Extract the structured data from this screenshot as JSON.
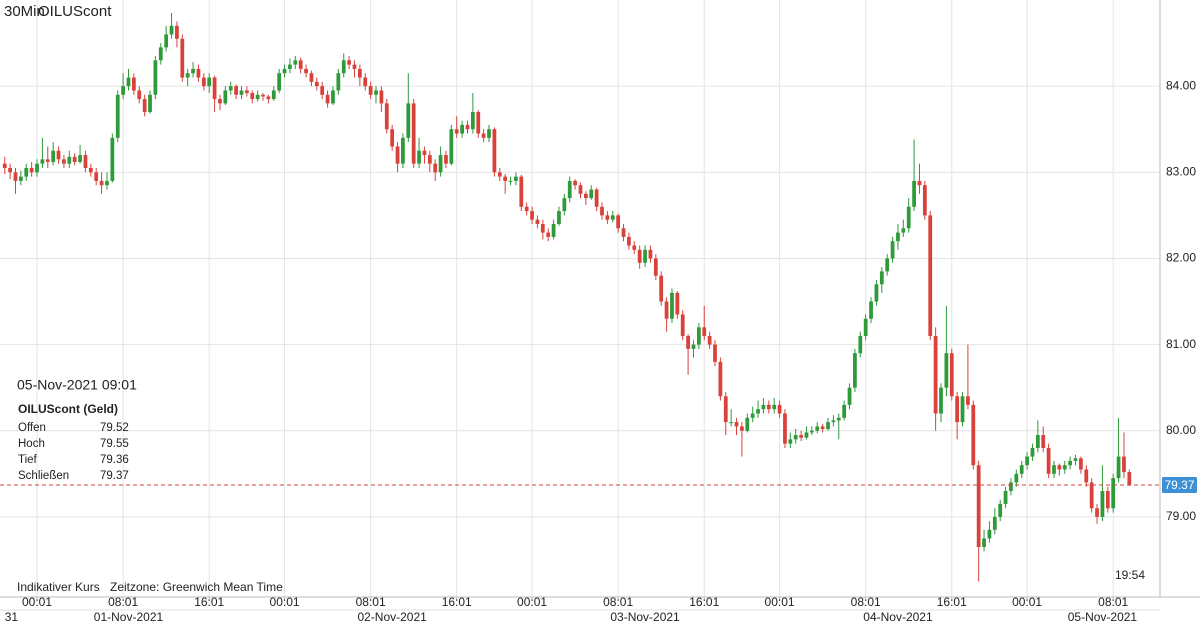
{
  "chart_data": {
    "type": "candlestick",
    "title": "30Min",
    "instrument": "OILUScont",
    "up_color": "#2e9a3a",
    "down_color": "#d9413b",
    "price_line_color": "#d9413b",
    "price_tag_color": "#3d8fd6",
    "grid": true,
    "xlim": [
      -0.88,
      214.7
    ],
    "ylim": [
      78.07,
      85.0
    ],
    "yticks": [
      {
        "value": 79,
        "label": "79.00"
      },
      {
        "value": 80,
        "label": "80.00"
      },
      {
        "value": 81,
        "label": "81.00"
      },
      {
        "value": 82,
        "label": "82.00"
      },
      {
        "value": 83,
        "label": "83.00"
      },
      {
        "value": 84,
        "label": "84.00"
      }
    ],
    "xticks": [
      {
        "value": 6,
        "label": "00:01"
      },
      {
        "value": 22,
        "label": "08:01"
      },
      {
        "value": 38,
        "label": "16:01"
      },
      {
        "value": 52,
        "label": "00:01"
      },
      {
        "value": 68,
        "label": "08:01"
      },
      {
        "value": 84,
        "label": "16:01"
      },
      {
        "value": 98,
        "label": "00:01"
      },
      {
        "value": 114,
        "label": "08:01"
      },
      {
        "value": 130,
        "label": "16:01"
      },
      {
        "value": 144,
        "label": "00:01"
      },
      {
        "value": 160,
        "label": "08:01"
      },
      {
        "value": 176,
        "label": "16:01"
      },
      {
        "value": 190,
        "label": "00:01"
      },
      {
        "value": 206,
        "label": "08:01"
      }
    ],
    "date_labels": [
      {
        "value": 0,
        "label": "31"
      },
      {
        "value": 23,
        "label": "01-Nov-2021"
      },
      {
        "value": 72,
        "label": "02-Nov-2021"
      },
      {
        "value": 119,
        "label": "03-Nov-2021"
      },
      {
        "value": 166,
        "label": "04-Nov-2021"
      },
      {
        "value": 204,
        "label": "05-Nov-2021"
      }
    ],
    "candles": [
      [
        83.1,
        83.18,
        82.98,
        83.05
      ],
      [
        83.05,
        83.1,
        82.92,
        83.0
      ],
      [
        83.0,
        83.05,
        82.75,
        82.9
      ],
      [
        82.9,
        83.02,
        82.85,
        82.95
      ],
      [
        82.95,
        83.1,
        82.9,
        83.05
      ],
      [
        83.05,
        83.12,
        82.95,
        83.0
      ],
      [
        83.0,
        83.15,
        82.95,
        83.1
      ],
      [
        83.1,
        83.4,
        83.05,
        83.15
      ],
      [
        83.15,
        83.3,
        83.05,
        83.12
      ],
      [
        83.12,
        83.35,
        83.08,
        83.25
      ],
      [
        83.25,
        83.3,
        83.1,
        83.15
      ],
      [
        83.15,
        83.2,
        83.05,
        83.1
      ],
      [
        83.1,
        83.25,
        83.05,
        83.18
      ],
      [
        83.18,
        83.22,
        83.08,
        83.12
      ],
      [
        83.12,
        83.32,
        83.1,
        83.2
      ],
      [
        83.2,
        83.25,
        83.0,
        83.05
      ],
      [
        83.05,
        83.1,
        82.95,
        83.0
      ],
      [
        83.0,
        83.05,
        82.85,
        82.9
      ],
      [
        82.9,
        83.0,
        82.75,
        82.85
      ],
      [
        82.85,
        83.0,
        82.8,
        82.9
      ],
      [
        82.9,
        83.45,
        82.88,
        83.4
      ],
      [
        83.4,
        83.95,
        83.35,
        83.9
      ],
      [
        83.9,
        84.15,
        83.85,
        84.0
      ],
      [
        84.0,
        84.2,
        83.95,
        84.1
      ],
      [
        84.1,
        84.15,
        83.9,
        83.95
      ],
      [
        83.95,
        84.0,
        83.8,
        83.85
      ],
      [
        83.85,
        83.9,
        83.65,
        83.7
      ],
      [
        83.7,
        83.95,
        83.68,
        83.9
      ],
      [
        83.9,
        84.35,
        83.85,
        84.3
      ],
      [
        84.3,
        84.5,
        84.25,
        84.45
      ],
      [
        84.45,
        84.7,
        84.4,
        84.6
      ],
      [
        84.6,
        84.85,
        84.55,
        84.7
      ],
      [
        84.7,
        84.75,
        84.45,
        84.55
      ],
      [
        84.55,
        84.6,
        84.05,
        84.1
      ],
      [
        84.1,
        84.2,
        84.0,
        84.15
      ],
      [
        84.15,
        84.28,
        84.1,
        84.2
      ],
      [
        84.2,
        84.25,
        84.05,
        84.1
      ],
      [
        84.1,
        84.15,
        83.95,
        84.0
      ],
      [
        84.0,
        84.15,
        83.92,
        84.1
      ],
      [
        84.1,
        84.12,
        83.7,
        83.85
      ],
      [
        83.85,
        83.9,
        83.72,
        83.8
      ],
      [
        83.8,
        84.0,
        83.78,
        83.95
      ],
      [
        83.95,
        84.05,
        83.9,
        84.0
      ],
      [
        84.0,
        84.02,
        83.85,
        83.9
      ],
      [
        83.9,
        84.0,
        83.85,
        83.95
      ],
      [
        83.95,
        84.0,
        83.88,
        83.92
      ],
      [
        83.92,
        83.95,
        83.8,
        83.85
      ],
      [
        83.85,
        83.95,
        83.82,
        83.9
      ],
      [
        83.9,
        83.92,
        83.83,
        83.88
      ],
      [
        83.88,
        83.9,
        83.8,
        83.85
      ],
      [
        83.85,
        84.0,
        83.83,
        83.95
      ],
      [
        83.95,
        84.2,
        83.92,
        84.15
      ],
      [
        84.15,
        84.25,
        84.1,
        84.2
      ],
      [
        84.2,
        84.32,
        84.15,
        84.25
      ],
      [
        84.25,
        84.35,
        84.2,
        84.3
      ],
      [
        84.3,
        84.33,
        84.15,
        84.2
      ],
      [
        84.2,
        84.25,
        84.1,
        84.15
      ],
      [
        84.15,
        84.18,
        84.0,
        84.05
      ],
      [
        84.05,
        84.1,
        83.95,
        84.0
      ],
      [
        84.0,
        84.05,
        83.85,
        83.9
      ],
      [
        83.9,
        83.95,
        83.75,
        83.8
      ],
      [
        83.8,
        84.0,
        83.78,
        83.95
      ],
      [
        83.95,
        84.2,
        83.9,
        84.15
      ],
      [
        84.15,
        84.38,
        84.1,
        84.3
      ],
      [
        84.3,
        84.35,
        84.2,
        84.25
      ],
      [
        84.25,
        84.3,
        84.1,
        84.2
      ],
      [
        84.2,
        84.25,
        84.0,
        84.1
      ],
      [
        84.1,
        84.15,
        83.95,
        84.0
      ],
      [
        84.0,
        84.05,
        83.85,
        83.9
      ],
      [
        83.9,
        84.0,
        83.8,
        83.95
      ],
      [
        83.95,
        84.0,
        83.7,
        83.8
      ],
      [
        83.8,
        83.85,
        83.45,
        83.5
      ],
      [
        83.5,
        83.55,
        83.25,
        83.3
      ],
      [
        83.3,
        83.35,
        83.0,
        83.1
      ],
      [
        83.1,
        83.45,
        83.05,
        83.4
      ],
      [
        83.4,
        84.15,
        83.35,
        83.8
      ],
      [
        83.8,
        83.85,
        83.05,
        83.1
      ],
      [
        83.1,
        83.4,
        83.05,
        83.25
      ],
      [
        83.25,
        83.3,
        83.1,
        83.2
      ],
      [
        83.2,
        83.25,
        83.0,
        83.1
      ],
      [
        83.1,
        83.15,
        82.9,
        83.0
      ],
      [
        83.0,
        83.3,
        82.95,
        83.2
      ],
      [
        83.2,
        83.25,
        83.05,
        83.1
      ],
      [
        83.1,
        83.55,
        83.08,
        83.5
      ],
      [
        83.5,
        83.65,
        83.4,
        83.45
      ],
      [
        83.45,
        83.6,
        83.4,
        83.55
      ],
      [
        83.55,
        83.6,
        83.45,
        83.5
      ],
      [
        83.5,
        83.92,
        83.45,
        83.7
      ],
      [
        83.7,
        83.72,
        83.4,
        83.45
      ],
      [
        83.45,
        83.5,
        83.35,
        83.4
      ],
      [
        83.4,
        83.55,
        83.35,
        83.5
      ],
      [
        83.5,
        83.52,
        82.95,
        83.0
      ],
      [
        83.0,
        83.05,
        82.9,
        82.95
      ],
      [
        82.95,
        82.98,
        82.75,
        82.9
      ],
      [
        82.9,
        82.95,
        82.85,
        82.9
      ],
      [
        82.9,
        83.0,
        82.85,
        82.95
      ],
      [
        82.95,
        82.97,
        82.55,
        82.6
      ],
      [
        82.6,
        82.65,
        82.5,
        82.55
      ],
      [
        82.55,
        82.6,
        82.4,
        82.45
      ],
      [
        82.45,
        82.5,
        82.35,
        82.4
      ],
      [
        82.4,
        82.45,
        82.22,
        82.3
      ],
      [
        82.3,
        82.35,
        82.2,
        82.25
      ],
      [
        82.25,
        82.45,
        82.22,
        82.4
      ],
      [
        82.4,
        82.6,
        82.38,
        82.55
      ],
      [
        82.55,
        82.75,
        82.5,
        82.7
      ],
      [
        82.7,
        82.95,
        82.65,
        82.9
      ],
      [
        82.9,
        82.92,
        82.8,
        82.85
      ],
      [
        82.85,
        82.88,
        82.7,
        82.75
      ],
      [
        82.75,
        82.78,
        82.62,
        82.7
      ],
      [
        82.7,
        82.85,
        82.68,
        82.8
      ],
      [
        82.8,
        82.82,
        82.55,
        82.6
      ],
      [
        82.6,
        82.65,
        82.45,
        82.5
      ],
      [
        82.5,
        82.55,
        82.4,
        82.45
      ],
      [
        82.45,
        82.55,
        82.42,
        82.5
      ],
      [
        82.5,
        82.52,
        82.3,
        82.35
      ],
      [
        82.35,
        82.4,
        82.2,
        82.25
      ],
      [
        82.25,
        82.3,
        82.1,
        82.15
      ],
      [
        82.15,
        82.2,
        82.05,
        82.1
      ],
      [
        82.1,
        82.15,
        81.88,
        81.95
      ],
      [
        81.95,
        82.15,
        81.9,
        82.1
      ],
      [
        82.1,
        82.15,
        81.95,
        82.0
      ],
      [
        82.0,
        82.05,
        81.75,
        81.8
      ],
      [
        81.8,
        81.85,
        81.45,
        81.5
      ],
      [
        81.5,
        81.55,
        81.15,
        81.3
      ],
      [
        81.3,
        81.65,
        81.25,
        81.6
      ],
      [
        81.6,
        81.62,
        81.3,
        81.35
      ],
      [
        81.35,
        81.4,
        81.05,
        81.1
      ],
      [
        81.1,
        81.12,
        80.65,
        80.95
      ],
      [
        80.95,
        81.05,
        80.85,
        81.0
      ],
      [
        81.0,
        81.25,
        80.95,
        81.2
      ],
      [
        81.2,
        81.45,
        81.05,
        81.1
      ],
      [
        81.1,
        81.15,
        80.95,
        81.0
      ],
      [
        81.0,
        81.05,
        80.75,
        80.8
      ],
      [
        80.8,
        80.85,
        80.35,
        80.4
      ],
      [
        80.4,
        80.45,
        79.95,
        80.1
      ],
      [
        80.1,
        80.25,
        80.05,
        80.1
      ],
      [
        80.1,
        80.15,
        79.95,
        80.05
      ],
      [
        80.05,
        80.1,
        79.7,
        80.0
      ],
      [
        80.0,
        80.2,
        79.98,
        80.15
      ],
      [
        80.15,
        80.28,
        80.1,
        80.2
      ],
      [
        80.2,
        80.35,
        80.15,
        80.25
      ],
      [
        80.25,
        80.38,
        80.2,
        80.3
      ],
      [
        80.3,
        80.35,
        80.2,
        80.25
      ],
      [
        80.25,
        80.38,
        80.2,
        80.3
      ],
      [
        80.3,
        80.35,
        80.15,
        80.2
      ],
      [
        80.2,
        80.25,
        79.8,
        79.85
      ],
      [
        79.85,
        79.98,
        79.8,
        79.9
      ],
      [
        79.9,
        80.02,
        79.85,
        79.95
      ],
      [
        79.95,
        80.0,
        79.88,
        79.92
      ],
      [
        79.92,
        80.05,
        79.9,
        79.98
      ],
      [
        79.98,
        80.05,
        79.95,
        80.0
      ],
      [
        80.0,
        80.1,
        79.97,
        80.05
      ],
      [
        80.05,
        80.08,
        79.98,
        80.02
      ],
      [
        80.02,
        80.15,
        80.0,
        80.1
      ],
      [
        80.1,
        80.18,
        80.05,
        80.12
      ],
      [
        80.12,
        80.2,
        79.9,
        80.15
      ],
      [
        80.15,
        80.35,
        80.12,
        80.3
      ],
      [
        80.3,
        80.55,
        80.25,
        80.5
      ],
      [
        80.5,
        80.95,
        80.45,
        80.9
      ],
      [
        80.9,
        81.15,
        80.85,
        81.1
      ],
      [
        81.1,
        81.35,
        81.05,
        81.3
      ],
      [
        81.3,
        81.55,
        81.25,
        81.5
      ],
      [
        81.5,
        81.75,
        81.45,
        81.7
      ],
      [
        81.7,
        81.9,
        81.6,
        81.85
      ],
      [
        81.85,
        82.05,
        81.8,
        82.0
      ],
      [
        82.0,
        82.25,
        81.95,
        82.2
      ],
      [
        82.2,
        82.4,
        82.1,
        82.3
      ],
      [
        82.3,
        82.45,
        82.25,
        82.35
      ],
      [
        82.35,
        82.7,
        82.3,
        82.6
      ],
      [
        82.6,
        83.38,
        82.55,
        82.9
      ],
      [
        82.9,
        83.1,
        82.75,
        82.85
      ],
      [
        82.85,
        82.9,
        82.45,
        82.5
      ],
      [
        82.5,
        82.55,
        81.05,
        81.1
      ],
      [
        81.1,
        81.2,
        80.0,
        80.2
      ],
      [
        80.2,
        80.55,
        80.1,
        80.5
      ],
      [
        80.5,
        81.45,
        80.4,
        80.9
      ],
      [
        80.9,
        80.95,
        80.35,
        80.4
      ],
      [
        80.4,
        80.45,
        79.9,
        80.1
      ],
      [
        80.1,
        80.45,
        80.05,
        80.4
      ],
      [
        80.4,
        81.0,
        80.25,
        80.3
      ],
      [
        80.3,
        80.35,
        79.55,
        79.6
      ],
      [
        79.6,
        79.65,
        78.25,
        78.65
      ],
      [
        78.65,
        78.85,
        78.6,
        78.75
      ],
      [
        78.75,
        78.95,
        78.7,
        78.85
      ],
      [
        78.85,
        79.1,
        78.8,
        79.0
      ],
      [
        79.0,
        79.2,
        78.95,
        79.15
      ],
      [
        79.15,
        79.35,
        79.1,
        79.3
      ],
      [
        79.3,
        79.45,
        79.25,
        79.4
      ],
      [
        79.4,
        79.55,
        79.35,
        79.5
      ],
      [
        79.5,
        79.65,
        79.45,
        79.6
      ],
      [
        79.6,
        79.75,
        79.55,
        79.7
      ],
      [
        79.7,
        79.85,
        79.65,
        79.8
      ],
      [
        79.8,
        80.12,
        79.75,
        79.95
      ],
      [
        79.95,
        80.05,
        79.75,
        79.8
      ],
      [
        79.8,
        79.85,
        79.45,
        79.5
      ],
      [
        79.5,
        79.65,
        79.45,
        79.6
      ],
      [
        79.6,
        79.62,
        79.48,
        79.55
      ],
      [
        79.55,
        79.65,
        79.5,
        79.6
      ],
      [
        79.6,
        79.7,
        79.55,
        79.65
      ],
      [
        79.65,
        79.72,
        79.6,
        79.68
      ],
      [
        79.68,
        79.7,
        79.5,
        79.55
      ],
      [
        79.55,
        79.6,
        79.35,
        79.4
      ],
      [
        79.4,
        79.45,
        79.05,
        79.1
      ],
      [
        79.1,
        79.15,
        78.92,
        79.0
      ],
      [
        79.0,
        79.6,
        78.95,
        79.3
      ],
      [
        79.3,
        79.35,
        79.05,
        79.1
      ],
      [
        79.1,
        79.5,
        79.05,
        79.45
      ],
      [
        79.45,
        80.15,
        79.4,
        79.7
      ],
      [
        79.7,
        79.98,
        79.45,
        79.52
      ],
      [
        79.52,
        79.55,
        79.36,
        79.37
      ]
    ],
    "info": {
      "datetime": "05-Nov-2021 09:01",
      "heading": "OILUScont (Geld)",
      "labels": [
        "Offen",
        "Hoch",
        "Tief",
        "Schließen"
      ]
    },
    "footer": {
      "note": "Indikativer Kurs",
      "timezone": "Zeitzone: Greenwich Mean Time"
    },
    "timestamp": "19:54"
  }
}
